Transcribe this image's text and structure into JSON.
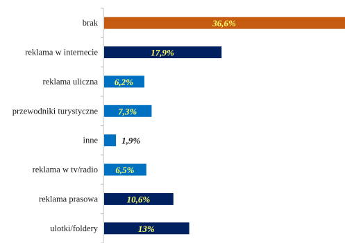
{
  "chart_data": {
    "type": "bar",
    "orientation": "horizontal",
    "categories": [
      "brak",
      "reklama w internecie",
      "reklama uliczna",
      "przewodniki turystyczne",
      "inne",
      "reklama w tv/radio",
      "reklama prasowa",
      "ulotki/foldery"
    ],
    "values": [
      36.6,
      17.9,
      6.2,
      7.3,
      1.9,
      6.5,
      10.6,
      13
    ],
    "value_labels": [
      "36,6%",
      "17,9%",
      "6,2%",
      "7,3%",
      "1,9%",
      "6,5%",
      "10,6%",
      "13%"
    ],
    "unit": "%",
    "xlim": [
      0,
      36.6
    ],
    "bar_colors": [
      "#c55a11",
      "#002060",
      "#0070c0",
      "#0070c0",
      "#0070c0",
      "#0070c0",
      "#002060",
      "#002060"
    ],
    "label_colors": [
      "#ffff66",
      "#ffff66",
      "#ffff66",
      "#ffff66",
      "#1a1a1a",
      "#ffff66",
      "#ffff66",
      "#ffff66"
    ],
    "title": "",
    "xlabel": "",
    "ylabel": "",
    "grid": false,
    "legend": "none"
  }
}
